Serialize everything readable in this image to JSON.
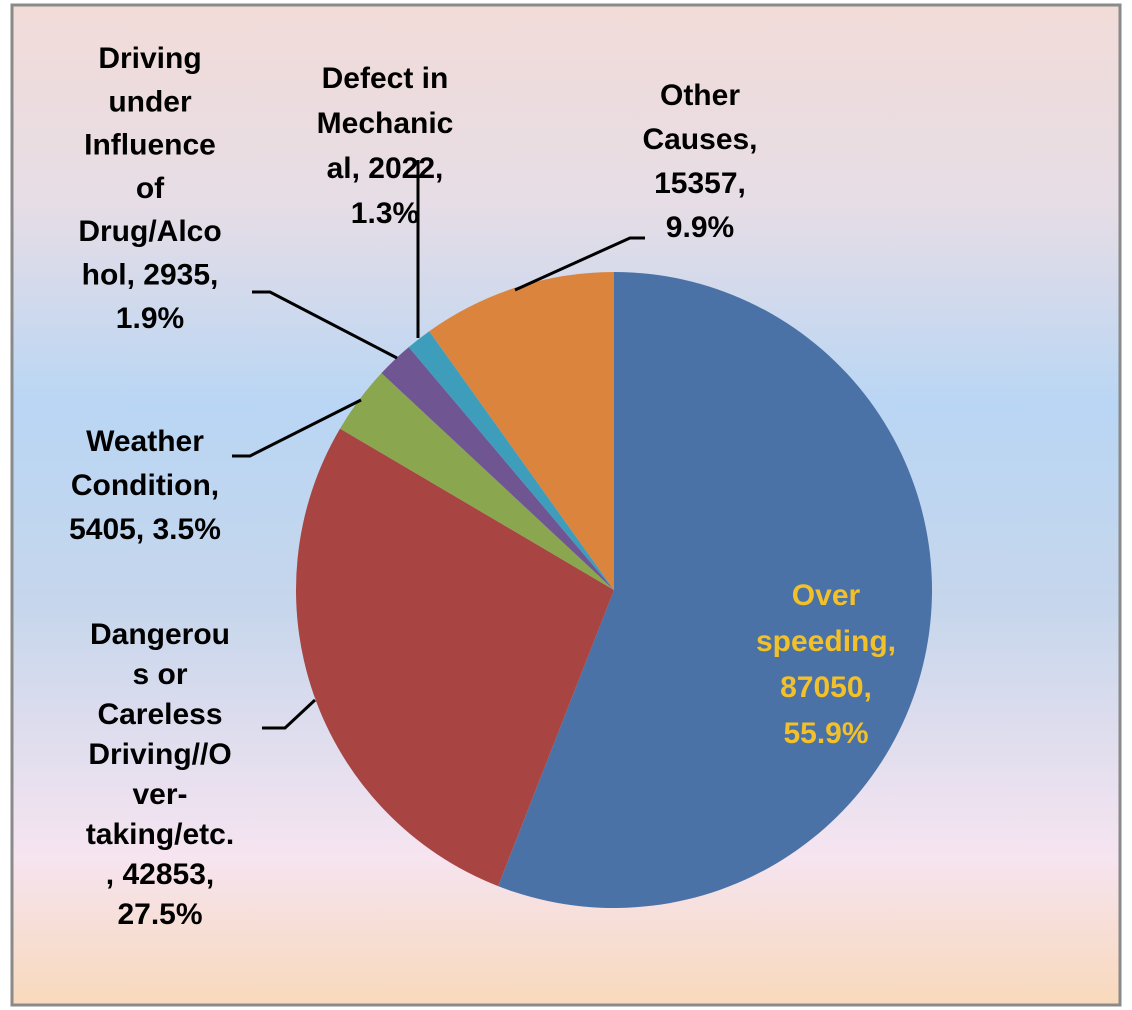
{
  "chart_data": {
    "type": "pie",
    "values": [
      87050,
      42853,
      5405,
      2935,
      2022,
      15357
    ],
    "value_labels": [
      [
        "Over",
        "speeding,",
        "87050,",
        "55.9%"
      ],
      [
        "Dangerou",
        "s or",
        "Careless",
        "Driving//O",
        "ver-",
        "taking/etc.",
        ", 42853,",
        "27.5%"
      ],
      [
        "Weather",
        "Condition,",
        "5405, 3.5%"
      ],
      [
        "Driving",
        "under",
        "Influence",
        "of",
        "Drug/Alco",
        "hol, 2935,",
        "1.9%"
      ],
      [
        "Defect in",
        "Mechanic",
        "al, 2022,",
        "1.3%"
      ],
      [
        "Other",
        "Causes,",
        "15357,",
        "9.9%"
      ]
    ],
    "colors": [
      "#4a72a6",
      "#a84542",
      "#8aa64f",
      "#6f5693",
      "#3e9dbb",
      "#db843d"
    ],
    "label_colors": [
      "#f2c029",
      "#000000",
      "#000000",
      "#000000",
      "#000000",
      "#000000"
    ]
  }
}
